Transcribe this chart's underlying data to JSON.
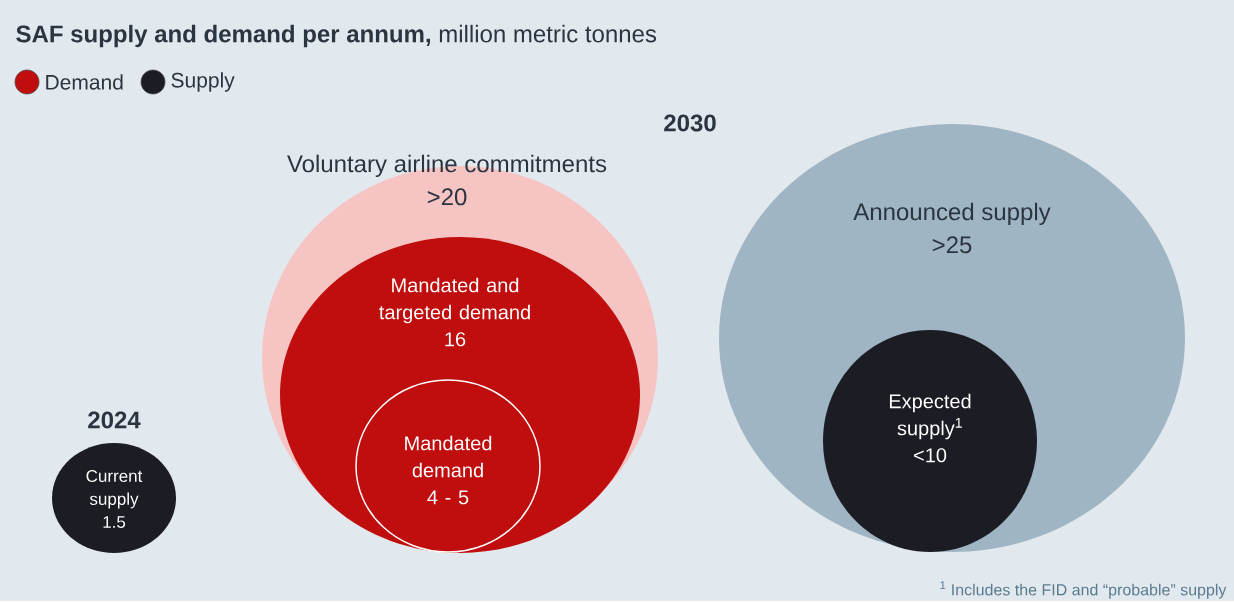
{
  "chart_data": {
    "type": "other",
    "title": "**SAF supply and demand per annum,** million metric tonnes",
    "categories": [
      "Current supply",
      "Voluntary airline commitments",
      "Mandated and targeted demand",
      "Mandated demand",
      "Announced supply",
      "Expected supply$^{1}$"
    ],
    "series": [
      {
        "name": "Demand",
        "color": "#c00d0d",
        "values": [
          null,
          null,
          16,
          null,
          null,
          null
        ],
        "value_labels": [
          null,
          ">20",
          "16",
          "4 - 5",
          null,
          null
        ],
        "colors": [
          null,
          "#f6c5c3",
          "#c00d0d",
          "#c00d0d",
          null,
          null
        ]
      },
      {
        "name": "Supply",
        "color": "#1c1d24",
        "values": [
          1.5,
          null,
          null,
          null,
          null,
          null
        ],
        "value_labels": [
          "1.5",
          null,
          null,
          null,
          ">25",
          "<10"
        ],
        "colors": [
          "#1c1d24",
          null,
          null,
          null,
          "#9fb5c4",
          "#1c1d24"
        ]
      }
    ],
    "legend": "top left",
    "annotations": [
      {
        "text": "2024",
        "x": "Current supply"
      },
      {
        "text": "2030"
      },
      "$^{1}$ Includes the FID and “probable” supply"
    ]
  }
}
